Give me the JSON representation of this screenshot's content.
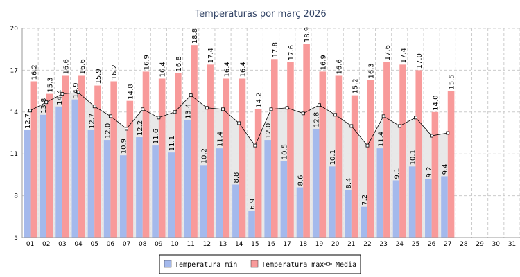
{
  "chart_data": {
    "type": "bar",
    "title": "Temperaturas por març 2026",
    "categories": [
      "01",
      "02",
      "03",
      "04",
      "05",
      "06",
      "07",
      "08",
      "09",
      "10",
      "11",
      "12",
      "13",
      "14",
      "15",
      "16",
      "17",
      "18",
      "19",
      "20",
      "21",
      "22",
      "23",
      "24",
      "25",
      "26",
      "27",
      "28",
      "29",
      "30",
      "31"
    ],
    "ylim": [
      5,
      20
    ],
    "yticks": [
      5,
      8,
      11,
      14,
      17,
      20
    ],
    "grid": true,
    "series": [
      {
        "name": "Temperatura min",
        "type": "bar",
        "color": "#a4b9ec",
        "values": [
          12.7,
          13.8,
          14.4,
          14.9,
          12.7,
          12.0,
          10.9,
          12.2,
          11.6,
          11.1,
          13.4,
          10.2,
          11.4,
          8.8,
          6.9,
          12.0,
          10.5,
          8.6,
          12.8,
          10.1,
          8.4,
          7.2,
          11.4,
          9.1,
          10.1,
          9.2,
          9.4,
          null,
          null,
          null,
          null
        ],
        "value_labels": [
          "12.7",
          "13.8",
          "14.4",
          "14.9",
          "12.7",
          "12.0",
          "10.9",
          "12.2",
          "11.6",
          "11.1",
          "13.4",
          "10.2",
          "11.4",
          "8.8",
          "6.9",
          "12.0",
          "10.5",
          "8.6",
          "12.8",
          "10.1",
          "8.4",
          "7.2",
          "11.4",
          "9.1",
          "10.1",
          "9.2",
          "9.4",
          null,
          null,
          null,
          null
        ]
      },
      {
        "name": "Temperatura max",
        "type": "bar",
        "color": "#f89a9a",
        "values": [
          16.2,
          15.3,
          16.6,
          16.6,
          15.9,
          16.2,
          14.8,
          16.9,
          16.4,
          16.8,
          18.8,
          17.4,
          16.4,
          16.4,
          14.2,
          17.8,
          17.6,
          18.9,
          16.9,
          16.6,
          15.2,
          16.3,
          17.6,
          17.4,
          17.0,
          14.0,
          15.5,
          null,
          null,
          null,
          null
        ],
        "value_labels": [
          "16.2",
          "15.3",
          "16.6",
          "16.6",
          "15.9",
          "16.2",
          "14.8",
          "16.9",
          "16.4",
          "16.8",
          "18.8",
          "17.4",
          "16.4",
          "16.4",
          "14.2",
          "17.8",
          "17.6",
          "18.9",
          "16.9",
          "16.6",
          "15.2",
          "16.3",
          "17.6",
          "17.4",
          "17.0",
          "14.0",
          "15.5",
          null,
          null,
          null,
          null
        ]
      },
      {
        "name": "Media",
        "type": "line",
        "color": "#000000",
        "values": [
          14.1,
          14.7,
          15.3,
          15.4,
          14.4,
          13.7,
          12.8,
          14.2,
          13.6,
          14.0,
          15.2,
          14.3,
          14.2,
          13.2,
          11.6,
          14.2,
          14.3,
          13.9,
          14.5,
          13.8,
          13.0,
          11.6,
          13.7,
          13.0,
          13.6,
          12.3,
          12.5,
          null,
          null,
          null,
          null
        ]
      }
    ]
  }
}
